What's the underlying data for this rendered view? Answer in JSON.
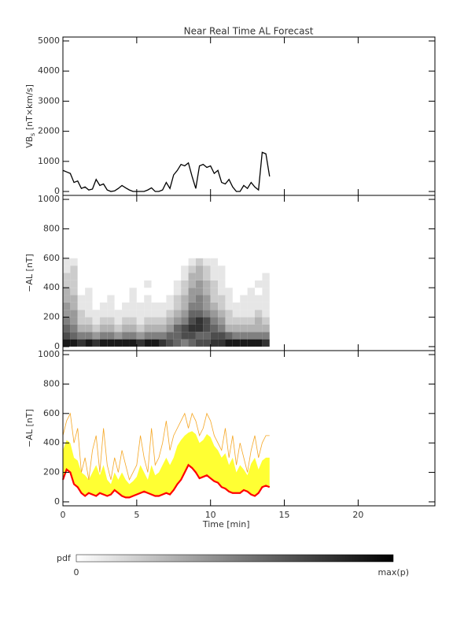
{
  "chart_data": [
    {
      "type": "line",
      "title": "Near Real Time AL Forecast",
      "y_label": "VB",
      "y_label_sub": "s",
      "y_label_rest": " [nT×km/s]",
      "x": [
        0,
        0.25,
        0.5,
        0.75,
        1,
        1.25,
        1.5,
        1.75,
        2,
        2.25,
        2.5,
        2.75,
        3,
        3.25,
        3.5,
        3.75,
        4,
        4.25,
        4.5,
        4.75,
        5,
        5.25,
        5.5,
        5.75,
        6,
        6.25,
        6.5,
        6.75,
        7,
        7.25,
        7.5,
        7.75,
        8,
        8.25,
        8.5,
        8.75,
        9,
        9.25,
        9.5,
        9.75,
        10,
        10.25,
        10.5,
        10.75,
        11,
        11.25,
        11.5,
        11.75,
        12,
        12.25,
        12.5,
        12.75,
        13,
        13.25,
        13.5,
        13.75,
        14
      ],
      "series": [
        {
          "color": "#000000",
          "values": [
            700,
            650,
            600,
            300,
            350,
            100,
            150,
            50,
            80,
            400,
            200,
            250,
            50,
            0,
            20,
            100,
            200,
            120,
            50,
            0,
            0,
            0,
            0,
            50,
            120,
            0,
            0,
            50,
            300,
            100,
            550,
            700,
            900,
            850,
            950,
            500,
            100,
            850,
            900,
            800,
            850,
            600,
            700,
            300,
            250,
            400,
            150,
            0,
            0,
            200,
            100,
            300,
            150,
            50,
            1300,
            1250,
            500
          ]
        }
      ],
      "xlim": [
        0,
        25.2
      ],
      "ylim": [
        -130,
        5130
      ],
      "yticks": [
        0,
        1000,
        2000,
        3000,
        4000,
        5000
      ]
    },
    {
      "type": "heatmap",
      "y_label": "−AL [nT]",
      "x_bins": [
        0,
        0.5,
        1,
        1.5,
        2,
        2.5,
        3,
        3.5,
        4,
        4.5,
        5,
        5.5,
        6,
        6.5,
        7,
        7.5,
        8,
        8.5,
        9,
        9.5,
        10,
        10.5,
        11,
        11.5,
        12,
        12.5,
        13,
        13.5,
        14
      ],
      "y_bins": [
        0,
        50,
        100,
        150,
        200,
        250,
        300,
        350,
        400,
        450,
        500,
        550,
        600
      ],
      "z": [
        [
          0.9,
          0.9,
          0.8,
          0.9,
          0.8,
          0.9,
          0.9,
          0.9,
          0.9,
          0.9,
          0.8,
          0.9,
          0.9,
          0.8,
          0.7,
          0.6,
          0.5,
          0.6,
          0.7,
          0.7,
          0.8,
          0.8,
          0.9,
          0.9,
          0.9,
          0.9,
          0.9,
          0.8
        ],
        [
          0.7,
          0.6,
          0.5,
          0.5,
          0.4,
          0.5,
          0.5,
          0.4,
          0.5,
          0.5,
          0.4,
          0.5,
          0.5,
          0.5,
          0.6,
          0.6,
          0.7,
          0.7,
          0.6,
          0.6,
          0.7,
          0.7,
          0.6,
          0.5,
          0.5,
          0.5,
          0.5,
          0.5
        ],
        [
          0.6,
          0.5,
          0.3,
          0.3,
          0.2,
          0.3,
          0.3,
          0.2,
          0.3,
          0.3,
          0.2,
          0.3,
          0.3,
          0.3,
          0.4,
          0.6,
          0.7,
          0.8,
          0.8,
          0.7,
          0.6,
          0.5,
          0.3,
          0.3,
          0.3,
          0.3,
          0.3,
          0.3
        ],
        [
          0.5,
          0.4,
          0.2,
          0.2,
          0.1,
          0.2,
          0.2,
          0.1,
          0.2,
          0.2,
          0.1,
          0.2,
          0.2,
          0.2,
          0.3,
          0.4,
          0.5,
          0.7,
          0.8,
          0.7,
          0.5,
          0.4,
          0.2,
          0.2,
          0.2,
          0.2,
          0.3,
          0.2
        ],
        [
          0.4,
          0.4,
          0.2,
          0.1,
          0.1,
          0.1,
          0.1,
          0.1,
          0.1,
          0.1,
          0.1,
          0.1,
          0.1,
          0.1,
          0.2,
          0.3,
          0.4,
          0.6,
          0.6,
          0.5,
          0.4,
          0.3,
          0.2,
          0.1,
          0.1,
          0.1,
          0.2,
          0.1
        ],
        [
          0.4,
          0.3,
          0.1,
          0.1,
          0,
          0.1,
          0.1,
          0,
          0.1,
          0.1,
          0.1,
          0.1,
          0.1,
          0.1,
          0.1,
          0.2,
          0.3,
          0.5,
          0.5,
          0.4,
          0.3,
          0.2,
          0.1,
          0.1,
          0.1,
          0.1,
          0.1,
          0.1
        ],
        [
          0.3,
          0.3,
          0.1,
          0.1,
          0,
          0,
          0.1,
          0,
          0,
          0.1,
          0,
          0.1,
          0,
          0,
          0.1,
          0.2,
          0.3,
          0.4,
          0.5,
          0.4,
          0.2,
          0.2,
          0.1,
          0,
          0.1,
          0.1,
          0.1,
          0.1
        ],
        [
          0.3,
          0.2,
          0,
          0.1,
          0,
          0,
          0,
          0,
          0,
          0.1,
          0,
          0,
          0,
          0,
          0,
          0.1,
          0.2,
          0.4,
          0.4,
          0.3,
          0.2,
          0.1,
          0.1,
          0,
          0,
          0.1,
          0,
          0.1
        ],
        [
          0.2,
          0.2,
          0,
          0,
          0,
          0,
          0,
          0,
          0,
          0,
          0,
          0.1,
          0,
          0,
          0,
          0.1,
          0.2,
          0.3,
          0.4,
          0.3,
          0.2,
          0.1,
          0,
          0,
          0,
          0,
          0.1,
          0.1
        ],
        [
          0.2,
          0.2,
          0,
          0,
          0,
          0,
          0,
          0,
          0,
          0,
          0,
          0,
          0,
          0,
          0,
          0,
          0.1,
          0.3,
          0.3,
          0.2,
          0.1,
          0.1,
          0,
          0,
          0,
          0,
          0,
          0.1
        ],
        [
          0.1,
          0.2,
          0,
          0,
          0,
          0,
          0,
          0,
          0,
          0,
          0,
          0,
          0,
          0,
          0,
          0,
          0.1,
          0.2,
          0.3,
          0.2,
          0.1,
          0.1,
          0,
          0,
          0,
          0,
          0,
          0
        ],
        [
          0.1,
          0.1,
          0,
          0,
          0,
          0,
          0,
          0,
          0,
          0,
          0,
          0,
          0,
          0,
          0,
          0,
          0,
          0.1,
          0.2,
          0.1,
          0.1,
          0,
          0,
          0,
          0,
          0,
          0,
          0
        ]
      ],
      "xlim": [
        0,
        25.2
      ],
      "ylim": [
        -27,
        1027
      ],
      "yticks": [
        0,
        200,
        400,
        600,
        800,
        1000
      ],
      "colorbar": {
        "label": "pdf",
        "min_label": "0",
        "max_label": "max(p)"
      }
    },
    {
      "type": "band",
      "y_label": "−AL [nT]",
      "x_label": "Time [min]",
      "x": [
        0,
        0.25,
        0.5,
        0.75,
        1,
        1.25,
        1.5,
        1.75,
        2,
        2.25,
        2.5,
        2.75,
        3,
        3.25,
        3.5,
        3.75,
        4,
        4.25,
        4.5,
        4.75,
        5,
        5.25,
        5.5,
        5.75,
        6,
        6.25,
        6.5,
        6.75,
        7,
        7.25,
        7.5,
        7.75,
        8,
        8.25,
        8.5,
        8.75,
        9,
        9.25,
        9.5,
        9.75,
        10,
        10.25,
        10.5,
        10.75,
        11,
        11.25,
        11.5,
        11.75,
        12,
        12.25,
        12.5,
        12.75,
        13,
        13.25,
        13.5,
        13.75,
        14
      ],
      "series": [
        {
          "color": "#f5a623",
          "values": [
            450,
            550,
            600,
            400,
            500,
            200,
            300,
            150,
            350,
            450,
            200,
            500,
            250,
            150,
            300,
            200,
            350,
            250,
            150,
            200,
            250,
            450,
            300,
            200,
            500,
            250,
            300,
            400,
            550,
            350,
            450,
            500,
            550,
            600,
            500,
            600,
            550,
            450,
            500,
            600,
            550,
            450,
            400,
            350,
            500,
            300,
            450,
            250,
            400,
            300,
            200,
            350,
            450,
            300,
            400,
            450,
            450
          ]
        },
        {
          "color": "#ffff33",
          "values": [
            350,
            420,
            400,
            300,
            280,
            200,
            180,
            150,
            200,
            250,
            180,
            250,
            150,
            120,
            200,
            150,
            200,
            150,
            120,
            140,
            170,
            250,
            200,
            150,
            250,
            180,
            200,
            250,
            300,
            250,
            300,
            380,
            420,
            450,
            470,
            480,
            460,
            400,
            420,
            460,
            440,
            380,
            350,
            300,
            330,
            250,
            300,
            200,
            250,
            220,
            180,
            260,
            300,
            220,
            280,
            300,
            300
          ]
        },
        {
          "color": "#ff0000",
          "values": [
            150,
            220,
            200,
            120,
            100,
            60,
            40,
            60,
            50,
            40,
            60,
            50,
            40,
            50,
            80,
            60,
            40,
            30,
            30,
            40,
            50,
            60,
            70,
            60,
            50,
            40,
            40,
            50,
            60,
            50,
            80,
            120,
            150,
            200,
            250,
            230,
            200,
            160,
            170,
            180,
            160,
            140,
            130,
            100,
            90,
            70,
            60,
            60,
            60,
            80,
            70,
            50,
            40,
            60,
            100,
            110,
            100
          ]
        }
      ],
      "xlim": [
        0,
        25.2
      ],
      "ylim": [
        -27,
        1027
      ],
      "yticks": [
        0,
        200,
        400,
        600,
        800,
        1000
      ],
      "xticks": [
        0,
        5,
        10,
        15,
        20
      ]
    }
  ]
}
